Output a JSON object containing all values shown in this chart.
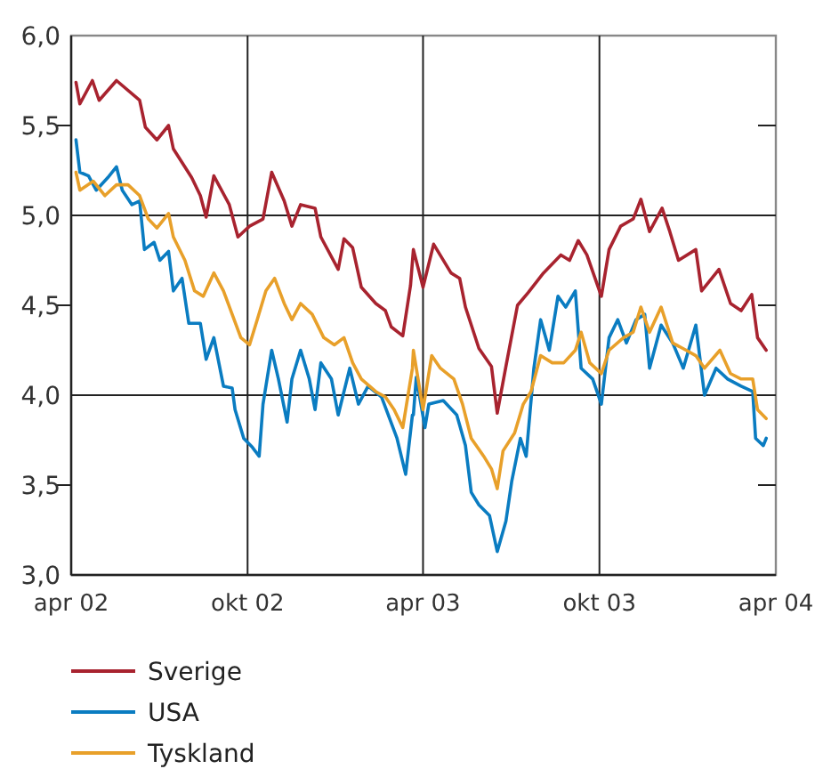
{
  "chart_data": {
    "type": "line",
    "xlim": [
      "2002-04-01",
      "2004-04-01"
    ],
    "xticks": [
      {
        "value": "2002-04-01",
        "label": "apr 02"
      },
      {
        "value": "2002-10-01",
        "label": "okt 02"
      },
      {
        "value": "2003-04-01",
        "label": "apr 03"
      },
      {
        "value": "2003-10-01",
        "label": "okt 03"
      },
      {
        "value": "2004-04-01",
        "label": "apr 04"
      }
    ],
    "ylim": [
      3,
      6
    ],
    "yticks": [
      {
        "value": 3,
        "label": "3,0"
      },
      {
        "value": 3.5,
        "label": "3,5"
      },
      {
        "value": 4,
        "label": "4,0"
      },
      {
        "value": 4.5,
        "label": "4,5"
      },
      {
        "value": 5,
        "label": "5,0"
      },
      {
        "value": 5.5,
        "label": "5,5"
      },
      {
        "value": 6,
        "label": "6,0"
      }
    ],
    "grid": true,
    "legend": "bottom",
    "marker": "none",
    "line_style": "solid",
    "series": [
      {
        "name": "Sverige",
        "color": "#a8232f",
        "x": [
          "2002-04-06",
          "2002-04-10",
          "2002-04-23",
          "2002-04-30",
          "2002-05-18",
          "2002-06-11",
          "2002-06-17",
          "2002-06-29",
          "2002-07-11",
          "2002-07-16",
          "2002-08-04",
          "2002-08-13",
          "2002-08-19",
          "2002-08-27",
          "2002-09-12",
          "2002-09-21",
          "2002-10-03",
          "2002-10-17",
          "2002-10-26",
          "2002-11-08",
          "2002-11-16",
          "2002-11-25",
          "2002-12-10",
          "2002-12-16",
          "2003-01-03",
          "2003-01-09",
          "2003-01-18",
          "2003-01-27",
          "2003-02-11",
          "2003-02-21",
          "2003-02-27",
          "2003-03-11",
          "2003-03-19",
          "2003-03-22",
          "2003-04-01",
          "2003-04-12",
          "2003-04-30",
          "2003-05-09",
          "2003-05-15",
          "2003-05-29",
          "2003-06-11",
          "2003-06-17",
          "2003-06-26",
          "2003-07-08",
          "2003-07-19",
          "2003-08-04",
          "2003-08-22",
          "2003-08-31",
          "2003-09-09",
          "2003-09-18",
          "2003-10-03",
          "2003-10-11",
          "2003-10-23",
          "2003-11-05",
          "2003-11-13",
          "2003-11-22",
          "2003-12-05",
          "2003-12-13",
          "2003-12-22",
          "2004-01-09",
          "2004-01-15",
          "2004-02-02",
          "2004-02-14",
          "2004-02-25",
          "2004-03-07",
          "2004-03-13",
          "2004-03-22"
        ],
        "values": [
          5.74,
          5.62,
          5.75,
          5.64,
          5.75,
          5.64,
          5.49,
          5.42,
          5.5,
          5.37,
          5.21,
          5.11,
          4.99,
          5.22,
          5.06,
          4.88,
          4.94,
          4.98,
          5.24,
          5.08,
          4.94,
          5.06,
          5.04,
          4.88,
          4.7,
          4.87,
          4.82,
          4.6,
          4.51,
          4.47,
          4.38,
          4.33,
          4.61,
          4.81,
          4.6,
          4.84,
          4.68,
          4.65,
          4.49,
          4.26,
          4.16,
          3.9,
          4.16,
          4.5,
          4.57,
          4.68,
          4.78,
          4.75,
          4.86,
          4.78,
          4.55,
          4.81,
          4.94,
          4.98,
          5.09,
          4.91,
          5.04,
          4.91,
          4.75,
          4.81,
          4.58,
          4.7,
          4.51,
          4.47,
          4.56,
          4.32,
          4.25
        ]
      },
      {
        "name": "USA",
        "color": "#0a7cc1",
        "x": [
          "2002-04-06",
          "2002-04-10",
          "2002-04-19",
          "2002-04-27",
          "2002-05-09",
          "2002-05-18",
          "2002-05-24",
          "2002-06-03",
          "2002-06-11",
          "2002-06-16",
          "2002-06-26",
          "2002-07-02",
          "2002-07-11",
          "2002-07-16",
          "2002-07-25",
          "2002-08-01",
          "2002-08-13",
          "2002-08-19",
          "2002-08-27",
          "2002-09-06",
          "2002-09-15",
          "2002-09-18",
          "2002-09-27",
          "2002-10-06",
          "2002-10-13",
          "2002-10-17",
          "2002-10-26",
          "2002-11-02",
          "2002-11-11",
          "2002-11-16",
          "2002-11-25",
          "2002-12-04",
          "2002-12-10",
          "2002-12-16",
          "2002-12-27",
          "2003-01-03",
          "2003-01-15",
          "2003-01-24",
          "2003-02-03",
          "2003-02-17",
          "2003-03-05",
          "2003-03-14",
          "2003-03-21",
          "2003-03-22",
          "2003-03-25",
          "2003-04-03",
          "2003-04-07",
          "2003-04-22",
          "2003-05-06",
          "2003-05-15",
          "2003-05-21",
          "2003-05-29",
          "2003-06-09",
          "2003-06-17",
          "2003-06-26",
          "2003-07-02",
          "2003-07-11",
          "2003-07-17",
          "2003-07-25",
          "2003-08-01",
          "2003-08-10",
          "2003-08-19",
          "2003-08-27",
          "2003-09-06",
          "2003-09-12",
          "2003-09-24",
          "2003-10-03",
          "2003-10-11",
          "2003-10-20",
          "2003-10-29",
          "2003-11-08",
          "2003-11-17",
          "2003-11-22",
          "2003-12-04",
          "2003-12-16",
          "2003-12-27",
          "2004-01-09",
          "2004-01-18",
          "2004-01-30",
          "2004-02-11",
          "2004-02-25",
          "2004-03-08",
          "2004-03-11",
          "2004-03-19",
          "2004-03-22"
        ],
        "values": [
          5.42,
          5.24,
          5.22,
          5.14,
          5.21,
          5.27,
          5.14,
          5.06,
          5.08,
          4.81,
          4.85,
          4.75,
          4.8,
          4.58,
          4.65,
          4.4,
          4.4,
          4.2,
          4.32,
          4.05,
          4.04,
          3.92,
          3.76,
          3.71,
          3.66,
          3.95,
          4.25,
          4.09,
          3.85,
          4.09,
          4.25,
          4.09,
          3.92,
          4.18,
          4.09,
          3.89,
          4.15,
          3.95,
          4.05,
          3.99,
          3.76,
          3.56,
          3.89,
          3.89,
          4.1,
          3.82,
          3.95,
          3.97,
          3.89,
          3.72,
          3.46,
          3.39,
          3.33,
          3.13,
          3.3,
          3.52,
          3.76,
          3.66,
          4.15,
          4.42,
          4.25,
          4.55,
          4.49,
          4.58,
          4.15,
          4.09,
          3.95,
          4.32,
          4.42,
          4.29,
          4.42,
          4.45,
          4.15,
          4.39,
          4.29,
          4.15,
          4.39,
          4.0,
          4.15,
          4.09,
          4.05,
          4.02,
          3.76,
          3.72,
          3.76
        ]
      },
      {
        "name": "Tyskland",
        "color": "#e8a02a",
        "x": [
          "2002-04-06",
          "2002-04-10",
          "2002-04-24",
          "2002-05-06",
          "2002-05-18",
          "2002-05-30",
          "2002-06-11",
          "2002-06-20",
          "2002-06-29",
          "2002-07-11",
          "2002-07-16",
          "2002-07-28",
          "2002-08-07",
          "2002-08-16",
          "2002-08-27",
          "2002-09-06",
          "2002-09-15",
          "2002-09-24",
          "2002-10-03",
          "2002-10-11",
          "2002-10-20",
          "2002-10-29",
          "2002-11-08",
          "2002-11-16",
          "2002-11-25",
          "2002-12-07",
          "2002-12-19",
          "2002-12-30",
          "2003-01-09",
          "2003-01-18",
          "2003-01-27",
          "2003-02-11",
          "2003-02-21",
          "2003-03-02",
          "2003-03-11",
          "2003-03-21",
          "2003-03-22",
          "2003-04-01",
          "2003-04-10",
          "2003-04-19",
          "2003-05-03",
          "2003-05-12",
          "2003-05-21",
          "2003-06-03",
          "2003-06-11",
          "2003-06-17",
          "2003-06-23",
          "2003-07-05",
          "2003-07-14",
          "2003-07-22",
          "2003-08-01",
          "2003-08-13",
          "2003-08-25",
          "2003-09-06",
          "2003-09-12",
          "2003-09-21",
          "2003-10-03",
          "2003-10-11",
          "2003-10-26",
          "2003-11-05",
          "2003-11-13",
          "2003-11-22",
          "2003-12-04",
          "2003-12-16",
          "2003-12-30",
          "2004-01-09",
          "2004-01-18",
          "2004-02-03",
          "2004-02-14",
          "2004-02-25",
          "2004-03-08",
          "2004-03-13",
          "2004-03-22"
        ],
        "values": [
          5.24,
          5.14,
          5.19,
          5.11,
          5.17,
          5.17,
          5.11,
          4.98,
          4.93,
          5.01,
          4.88,
          4.75,
          4.58,
          4.55,
          4.68,
          4.58,
          4.45,
          4.32,
          4.28,
          4.42,
          4.58,
          4.65,
          4.51,
          4.42,
          4.51,
          4.45,
          4.32,
          4.28,
          4.32,
          4.18,
          4.09,
          4.02,
          3.99,
          3.92,
          3.82,
          4.15,
          4.25,
          3.92,
          4.22,
          4.15,
          4.09,
          3.95,
          3.76,
          3.66,
          3.59,
          3.48,
          3.69,
          3.79,
          3.95,
          4.02,
          4.22,
          4.18,
          4.18,
          4.25,
          4.35,
          4.18,
          4.12,
          4.25,
          4.32,
          4.35,
          4.49,
          4.35,
          4.49,
          4.29,
          4.25,
          4.22,
          4.15,
          4.25,
          4.12,
          4.09,
          4.09,
          3.92,
          3.87
        ]
      }
    ]
  }
}
